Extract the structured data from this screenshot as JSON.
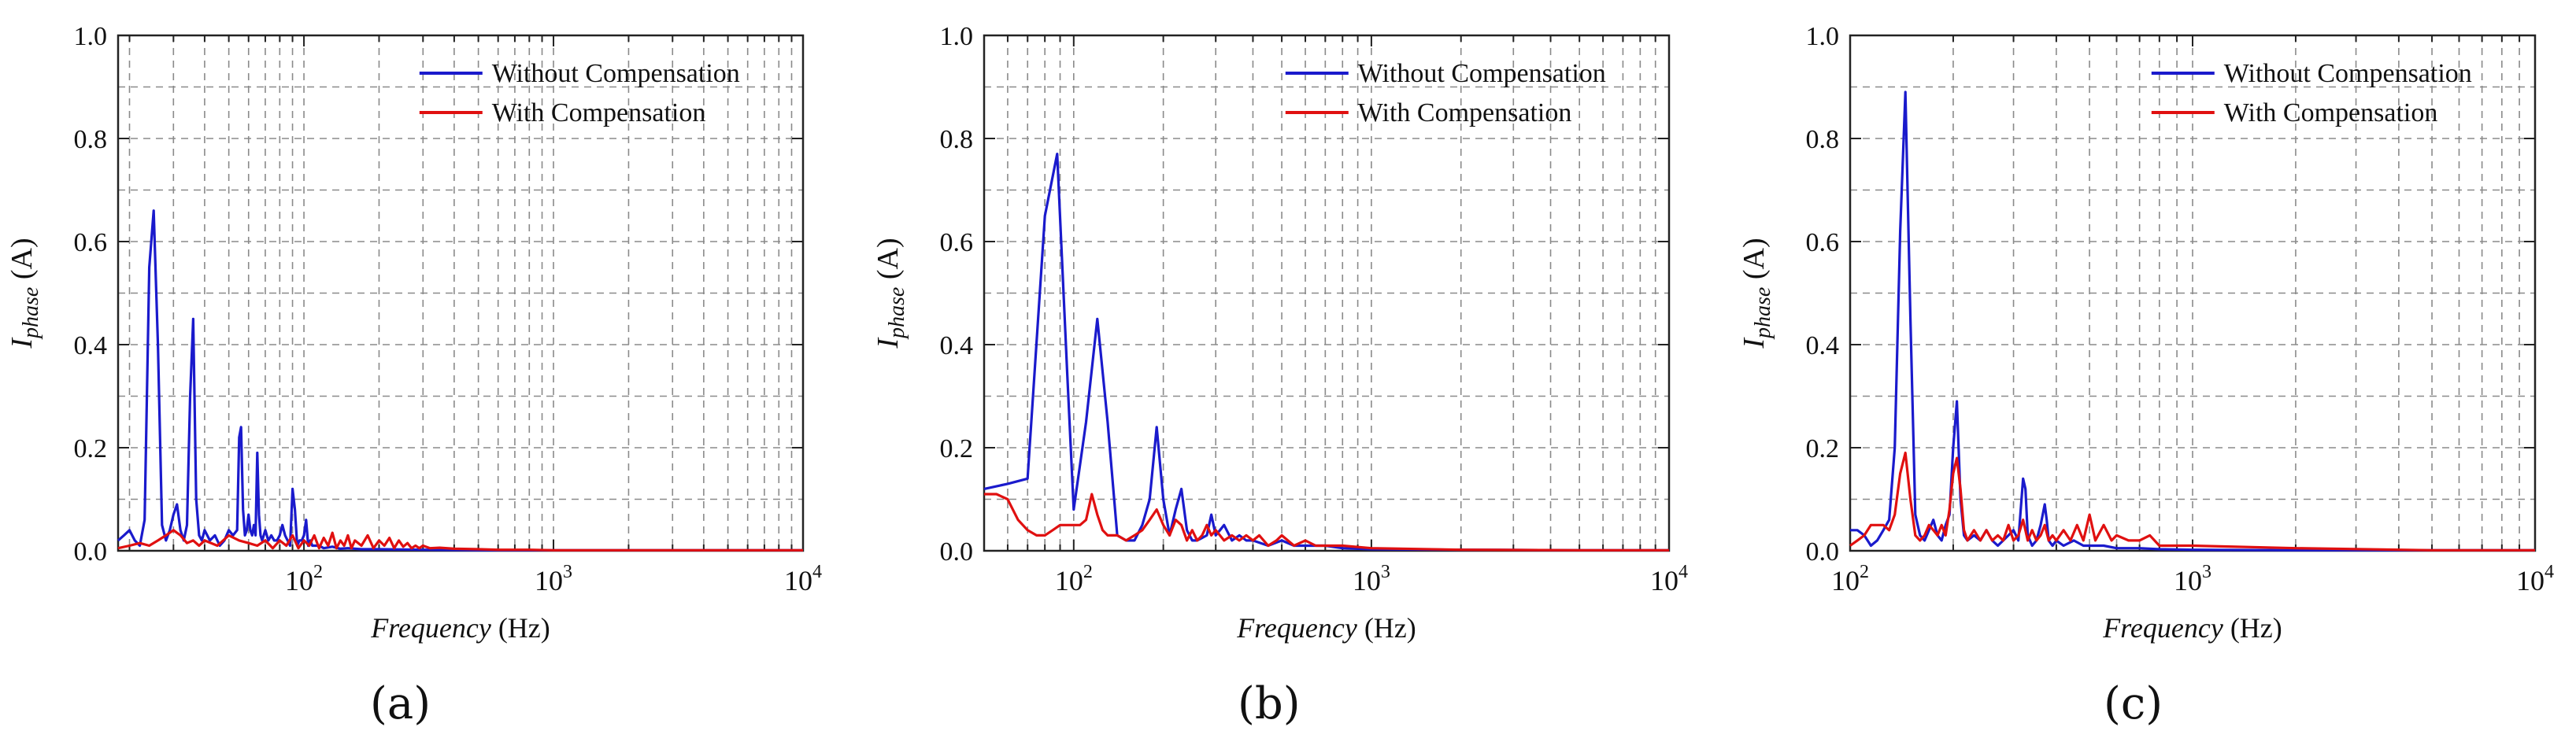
{
  "colors": {
    "without": "#1a1acc",
    "with": "#e01010",
    "grid": "#8a8a8a",
    "axis": "#222222"
  },
  "legend": {
    "without": "Without Compensation",
    "with": "With Compensation"
  },
  "captions": [
    "(a)",
    "(b)",
    "(c)"
  ],
  "chart_data": [
    {
      "type": "line",
      "title": "(a)",
      "xlabel_italic": "Frequency",
      "xlabel_unit": "(Hz)",
      "ylabel_main": "I",
      "ylabel_sub": "phase",
      "ylabel_unit": "(A)",
      "xscale": "log",
      "xlim": [
        18,
        10000
      ],
      "ylim": [
        0,
        1.0
      ],
      "yticks": [
        "0.0",
        "0.2",
        "0.4",
        "0.6",
        "0.8",
        "1.0"
      ],
      "xticks": [
        {
          "base": "10",
          "exp": "2"
        },
        {
          "base": "10",
          "exp": "3"
        },
        {
          "base": "10",
          "exp": "4"
        }
      ],
      "legend_position": "top-right",
      "series": [
        {
          "name": "Without Compensation",
          "x": [
            18,
            19,
            20,
            21,
            22,
            23,
            24,
            25,
            26,
            27,
            28,
            29,
            30,
            31,
            32,
            33,
            34,
            35,
            36,
            37,
            38,
            39,
            40,
            42,
            44,
            46,
            48,
            50,
            52,
            54,
            55,
            56,
            57,
            58,
            59,
            60,
            61,
            62,
            63,
            64,
            65,
            66,
            67,
            68,
            70,
            72,
            74,
            76,
            78,
            80,
            82,
            84,
            86,
            88,
            90,
            92,
            94,
            96,
            98,
            100,
            102,
            104,
            106,
            108,
            110,
            115,
            120,
            130,
            140,
            150,
            170,
            200,
            300,
            500,
            1000,
            3000,
            10000
          ],
          "y": [
            0.02,
            0.03,
            0.04,
            0.02,
            0.01,
            0.06,
            0.55,
            0.66,
            0.4,
            0.05,
            0.02,
            0.04,
            0.07,
            0.09,
            0.04,
            0.02,
            0.05,
            0.3,
            0.45,
            0.1,
            0.03,
            0.02,
            0.04,
            0.02,
            0.03,
            0.01,
            0.02,
            0.04,
            0.03,
            0.04,
            0.22,
            0.24,
            0.08,
            0.03,
            0.04,
            0.07,
            0.04,
            0.03,
            0.05,
            0.03,
            0.19,
            0.07,
            0.03,
            0.02,
            0.04,
            0.02,
            0.03,
            0.02,
            0.02,
            0.03,
            0.05,
            0.03,
            0.02,
            0.01,
            0.12,
            0.08,
            0.01,
            0.02,
            0.02,
            0.03,
            0.06,
            0.01,
            0.02,
            0.01,
            0.01,
            0.01,
            0.005,
            0.008,
            0.004,
            0.005,
            0.003,
            0.003,
            0.002,
            0.001,
            0.001,
            0.001,
            0.001
          ]
        },
        {
          "name": "With Compensation",
          "x": [
            18,
            20,
            22,
            24,
            26,
            28,
            30,
            32,
            34,
            36,
            38,
            40,
            45,
            50,
            55,
            60,
            65,
            70,
            75,
            80,
            85,
            90,
            95,
            100,
            105,
            110,
            115,
            120,
            125,
            130,
            135,
            140,
            145,
            150,
            155,
            160,
            170,
            180,
            190,
            200,
            210,
            220,
            230,
            240,
            250,
            260,
            270,
            280,
            290,
            300,
            320,
            350,
            400,
            500,
            600,
            800,
            1000,
            2000,
            5000,
            10000
          ],
          "y": [
            0.005,
            0.01,
            0.015,
            0.01,
            0.02,
            0.03,
            0.04,
            0.03,
            0.015,
            0.02,
            0.01,
            0.02,
            0.01,
            0.03,
            0.02,
            0.015,
            0.01,
            0.02,
            0.005,
            0.02,
            0.01,
            0.03,
            0.005,
            0.02,
            0.01,
            0.03,
            0.005,
            0.025,
            0.01,
            0.035,
            0.005,
            0.02,
            0.01,
            0.03,
            0.005,
            0.02,
            0.01,
            0.03,
            0.005,
            0.02,
            0.01,
            0.025,
            0.005,
            0.02,
            0.008,
            0.015,
            0.005,
            0.01,
            0.005,
            0.01,
            0.005,
            0.006,
            0.004,
            0.003,
            0.002,
            0.002,
            0.001,
            0.001,
            0.001,
            0.001
          ]
        }
      ]
    },
    {
      "type": "line",
      "title": "(b)",
      "xlabel_italic": "Frequency",
      "xlabel_unit": "(Hz)",
      "ylabel_main": "I",
      "ylabel_sub": "phase",
      "ylabel_unit": "(A)",
      "xscale": "log",
      "xlim": [
        50,
        10000
      ],
      "ylim": [
        0,
        1.0
      ],
      "yticks": [
        "0.0",
        "0.2",
        "0.4",
        "0.6",
        "0.8",
        "1.0"
      ],
      "xticks": [
        {
          "base": "10",
          "exp": "2"
        },
        {
          "base": "10",
          "exp": "3"
        },
        {
          "base": "10",
          "exp": "4"
        }
      ],
      "legend_position": "top-right",
      "series": [
        {
          "name": "Without Compensation",
          "x": [
            50,
            60,
            70,
            80,
            88,
            95,
            100,
            110,
            120,
            130,
            140,
            150,
            160,
            170,
            180,
            190,
            200,
            210,
            220,
            230,
            240,
            250,
            260,
            280,
            290,
            300,
            310,
            320,
            340,
            360,
            380,
            400,
            450,
            500,
            550,
            600,
            700,
            800,
            1000,
            2000,
            5000,
            10000
          ],
          "y": [
            0.12,
            0.13,
            0.14,
            0.65,
            0.77,
            0.35,
            0.08,
            0.25,
            0.45,
            0.25,
            0.03,
            0.02,
            0.02,
            0.05,
            0.1,
            0.24,
            0.1,
            0.03,
            0.08,
            0.12,
            0.04,
            0.02,
            0.02,
            0.03,
            0.07,
            0.03,
            0.04,
            0.05,
            0.02,
            0.03,
            0.02,
            0.02,
            0.01,
            0.02,
            0.01,
            0.01,
            0.01,
            0.005,
            0.003,
            0.002,
            0.001,
            0.001
          ]
        },
        {
          "name": "With Compensation",
          "x": [
            50,
            55,
            60,
            65,
            70,
            75,
            80,
            85,
            90,
            95,
            100,
            105,
            110,
            115,
            120,
            125,
            130,
            140,
            150,
            160,
            170,
            180,
            190,
            200,
            210,
            220,
            230,
            240,
            250,
            260,
            270,
            280,
            290,
            300,
            320,
            340,
            360,
            380,
            400,
            420,
            450,
            480,
            500,
            550,
            600,
            650,
            700,
            800,
            1000,
            2000,
            5000,
            10000
          ],
          "y": [
            0.11,
            0.11,
            0.1,
            0.06,
            0.04,
            0.03,
            0.03,
            0.04,
            0.05,
            0.05,
            0.05,
            0.05,
            0.06,
            0.11,
            0.07,
            0.04,
            0.03,
            0.03,
            0.02,
            0.03,
            0.04,
            0.06,
            0.08,
            0.05,
            0.03,
            0.06,
            0.05,
            0.02,
            0.04,
            0.02,
            0.03,
            0.05,
            0.03,
            0.04,
            0.02,
            0.03,
            0.02,
            0.03,
            0.02,
            0.03,
            0.01,
            0.02,
            0.03,
            0.01,
            0.02,
            0.01,
            0.01,
            0.01,
            0.005,
            0.002,
            0.001,
            0.001
          ]
        }
      ]
    },
    {
      "type": "line",
      "title": "(c)",
      "xlabel_italic": "Frequency",
      "xlabel_unit": "(Hz)",
      "ylabel_main": "I",
      "ylabel_sub": "phase",
      "ylabel_unit": "(A)",
      "xscale": "log",
      "xlim": [
        100,
        10000
      ],
      "ylim": [
        0,
        1.0
      ],
      "yticks": [
        "0.0",
        "0.2",
        "0.4",
        "0.6",
        "0.8",
        "1.0"
      ],
      "xticks": [
        {
          "base": "10",
          "exp": "2"
        },
        {
          "base": "10",
          "exp": "3"
        },
        {
          "base": "10",
          "exp": "4"
        }
      ],
      "legend_position": "top-right",
      "series": [
        {
          "name": "Without Compensation",
          "x": [
            100,
            105,
            110,
            115,
            120,
            125,
            130,
            135,
            140,
            145,
            150,
            155,
            160,
            165,
            170,
            175,
            180,
            185,
            190,
            195,
            200,
            205,
            210,
            215,
            220,
            230,
            240,
            250,
            260,
            270,
            280,
            290,
            300,
            310,
            320,
            325,
            330,
            335,
            340,
            350,
            360,
            370,
            375,
            380,
            390,
            400,
            420,
            450,
            480,
            500,
            550,
            600,
            700,
            800,
            1000,
            2000,
            5000,
            10000
          ],
          "y": [
            0.04,
            0.04,
            0.03,
            0.01,
            0.02,
            0.04,
            0.06,
            0.2,
            0.62,
            0.89,
            0.45,
            0.07,
            0.03,
            0.02,
            0.04,
            0.06,
            0.03,
            0.02,
            0.05,
            0.07,
            0.2,
            0.29,
            0.1,
            0.03,
            0.02,
            0.03,
            0.02,
            0.04,
            0.02,
            0.01,
            0.02,
            0.03,
            0.04,
            0.02,
            0.14,
            0.12,
            0.03,
            0.02,
            0.01,
            0.02,
            0.05,
            0.09,
            0.06,
            0.02,
            0.01,
            0.02,
            0.01,
            0.02,
            0.01,
            0.01,
            0.01,
            0.005,
            0.005,
            0.003,
            0.002,
            0.001,
            0.001,
            0.001
          ]
        },
        {
          "name": "With Compensation",
          "x": [
            100,
            105,
            110,
            115,
            120,
            125,
            130,
            135,
            140,
            145,
            150,
            155,
            160,
            165,
            170,
            175,
            180,
            185,
            190,
            195,
            200,
            205,
            210,
            215,
            220,
            230,
            240,
            250,
            260,
            270,
            280,
            290,
            300,
            310,
            320,
            330,
            340,
            350,
            360,
            370,
            380,
            390,
            400,
            420,
            440,
            460,
            480,
            500,
            520,
            550,
            580,
            600,
            650,
            700,
            750,
            800,
            900,
            1000,
            2000,
            5000,
            10000
          ],
          "y": [
            0.01,
            0.02,
            0.03,
            0.05,
            0.05,
            0.05,
            0.04,
            0.07,
            0.15,
            0.19,
            0.1,
            0.03,
            0.02,
            0.03,
            0.05,
            0.04,
            0.03,
            0.05,
            0.03,
            0.08,
            0.15,
            0.18,
            0.12,
            0.04,
            0.02,
            0.04,
            0.02,
            0.04,
            0.02,
            0.03,
            0.02,
            0.05,
            0.02,
            0.03,
            0.06,
            0.02,
            0.04,
            0.02,
            0.03,
            0.05,
            0.02,
            0.03,
            0.02,
            0.04,
            0.02,
            0.05,
            0.02,
            0.07,
            0.02,
            0.05,
            0.02,
            0.03,
            0.02,
            0.02,
            0.03,
            0.01,
            0.01,
            0.01,
            0.005,
            0.001,
            0.001
          ]
        }
      ]
    }
  ]
}
